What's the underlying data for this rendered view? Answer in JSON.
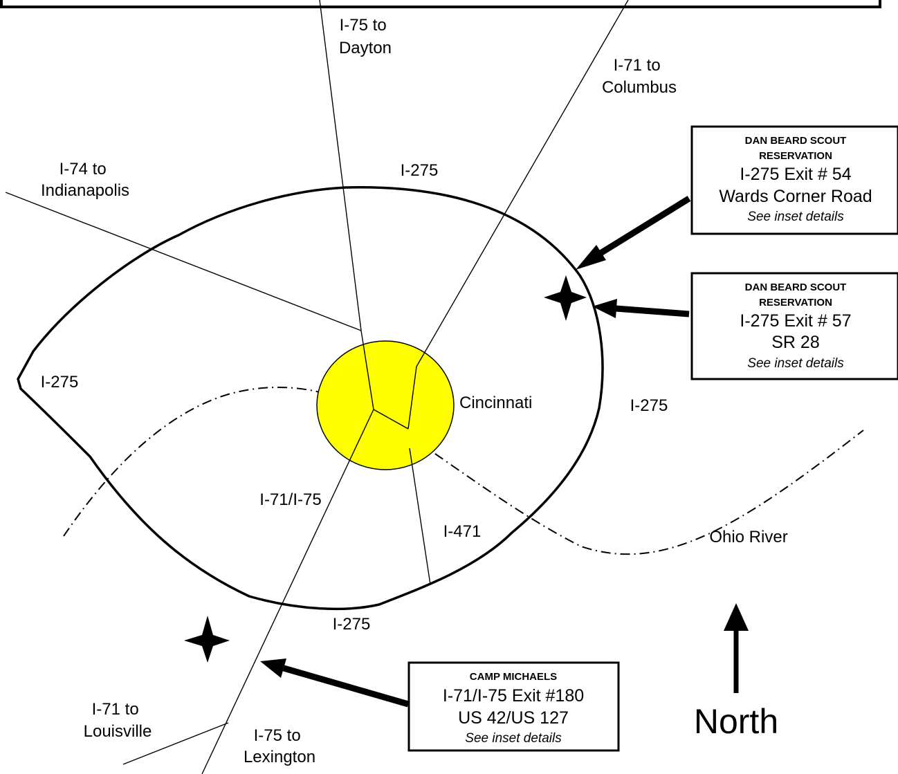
{
  "highways": {
    "i75_north": "I-75 to Dayton",
    "i71_north": "I-71 to Columbus",
    "i74": "I-74 to Indianapolis",
    "i71_south": "I-71 to Louisville",
    "i75_south": "I-75 to Lexington",
    "i71_i75": "I-71/I-75",
    "i471": "I-471",
    "beltway_top": "I-275",
    "beltway_left": "I-275",
    "beltway_right": "I-275",
    "beltway_bottom": "I-275"
  },
  "places": {
    "city": "Cincinnati",
    "river": "Ohio River",
    "north": "North"
  },
  "callouts": [
    {
      "title": [
        "DAN BEARD SCOUT",
        "RESERVATION"
      ],
      "lines": [
        "I-275 Exit # 54",
        "Wards Corner Road"
      ],
      "note": "See inset details"
    },
    {
      "title": [
        "DAN BEARD SCOUT",
        "RESERVATION"
      ],
      "lines": [
        "I-275 Exit # 57",
        "SR 28"
      ],
      "note": "See inset details"
    },
    {
      "title": [
        "CAMP MICHAELS"
      ],
      "lines": [
        "I-71/I-75 Exit #180",
        "US 42/US 127"
      ],
      "note": "See inset details"
    }
  ],
  "colors": {
    "city_fill": "#ffff00",
    "ink": "#000000"
  }
}
